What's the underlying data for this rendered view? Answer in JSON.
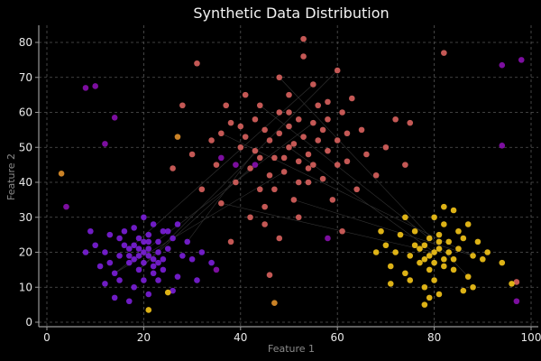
{
  "chart_data": {
    "type": "scatter",
    "title": "Synthetic Data Distribution",
    "xlabel": "Feature 1",
    "ylabel": "Feature 2",
    "xlim": [
      -2,
      102
    ],
    "ylim": [
      -1,
      85
    ],
    "xticks": [
      0,
      20,
      40,
      60,
      80,
      100
    ],
    "yticks": [
      0,
      10,
      20,
      30,
      40,
      50,
      60,
      70,
      80
    ],
    "grid": true,
    "background": "#000000",
    "series": [
      {
        "color": "#7b1fd9",
        "points": [
          [
            20,
            20
          ],
          [
            18,
            22
          ],
          [
            22,
            18
          ],
          [
            15,
            19
          ],
          [
            25,
            21
          ],
          [
            19,
            15
          ],
          [
            21,
            25
          ],
          [
            17,
            17
          ],
          [
            23,
            23
          ],
          [
            12,
            20
          ],
          [
            28,
            19
          ],
          [
            20,
            12
          ],
          [
            16,
            26
          ],
          [
            24,
            15
          ],
          [
            26,
            24
          ],
          [
            14,
            14
          ],
          [
            22,
            28
          ],
          [
            10,
            22
          ],
          [
            30,
            18
          ],
          [
            18,
            10
          ],
          [
            27,
            13
          ],
          [
            13,
            25
          ],
          [
            21,
            21
          ],
          [
            19,
            19
          ],
          [
            20,
            17
          ],
          [
            17,
            21
          ],
          [
            23,
            20
          ],
          [
            24,
            18
          ],
          [
            16,
            22
          ],
          [
            21,
            23
          ],
          [
            19,
            24
          ],
          [
            22,
            16
          ],
          [
            18,
            18
          ],
          [
            25,
            26
          ],
          [
            11,
            16
          ],
          [
            29,
            23
          ],
          [
            15,
            12
          ],
          [
            27,
            28
          ],
          [
            8,
            20
          ],
          [
            32,
            20
          ],
          [
            20,
            30
          ],
          [
            21,
            8
          ],
          [
            14,
            7
          ],
          [
            17,
            6
          ],
          [
            34,
            17
          ],
          [
            31,
            12
          ],
          [
            9,
            26
          ],
          [
            12,
            11
          ],
          [
            26,
            9
          ],
          [
            22,
            14
          ],
          [
            18,
            27
          ],
          [
            24,
            26
          ],
          [
            15,
            24
          ],
          [
            23,
            12
          ],
          [
            13,
            17
          ],
          [
            19,
            21
          ],
          [
            21,
            19
          ],
          [
            20,
            23
          ],
          [
            17,
            19
          ],
          [
            23,
            17
          ]
        ]
      },
      {
        "color": "#d9625e",
        "points": [
          [
            50,
            50
          ],
          [
            45,
            55
          ],
          [
            55,
            45
          ],
          [
            48,
            60
          ],
          [
            52,
            40
          ],
          [
            40,
            50
          ],
          [
            60,
            52
          ],
          [
            42,
            44
          ],
          [
            58,
            58
          ],
          [
            47,
            47
          ],
          [
            53,
            53
          ],
          [
            38,
            57
          ],
          [
            62,
            46
          ],
          [
            50,
            65
          ],
          [
            51,
            35
          ],
          [
            35,
            45
          ],
          [
            65,
            55
          ],
          [
            44,
            38
          ],
          [
            56,
            62
          ],
          [
            46,
            52
          ],
          [
            54,
            48
          ],
          [
            49,
            43
          ],
          [
            43,
            58
          ],
          [
            57,
            41
          ],
          [
            61,
            60
          ],
          [
            39,
            40
          ],
          [
            66,
            48
          ],
          [
            34,
            52
          ],
          [
            48,
            70
          ],
          [
            52,
            30
          ],
          [
            41,
            65
          ],
          [
            59,
            35
          ],
          [
            70,
            50
          ],
          [
            30,
            48
          ],
          [
            45,
            28
          ],
          [
            55,
            68
          ],
          [
            63,
            64
          ],
          [
            37,
            62
          ],
          [
            68,
            42
          ],
          [
            32,
            38
          ],
          [
            53,
            76
          ],
          [
            53,
            81
          ],
          [
            44,
            62
          ],
          [
            56,
            52
          ],
          [
            50,
            56
          ],
          [
            49,
            47
          ],
          [
            52,
            58
          ],
          [
            46,
            42
          ],
          [
            57,
            55
          ],
          [
            43,
            49
          ],
          [
            54,
            40
          ],
          [
            60,
            45
          ],
          [
            40,
            56
          ],
          [
            51,
            51
          ],
          [
            48,
            54
          ],
          [
            58,
            49
          ],
          [
            36,
            34
          ],
          [
            64,
            38
          ],
          [
            72,
            58
          ],
          [
            28,
            62
          ],
          [
            31,
            74
          ],
          [
            74,
            45
          ],
          [
            42,
            30
          ],
          [
            60,
            72
          ],
          [
            26,
            44
          ],
          [
            45,
            33
          ],
          [
            48,
            24
          ],
          [
            61,
            26
          ],
          [
            38,
            23
          ],
          [
            75,
            57
          ],
          [
            36,
            54
          ],
          [
            54,
            44
          ],
          [
            47,
            38
          ],
          [
            62,
            54
          ],
          [
            44,
            47
          ],
          [
            52,
            46
          ],
          [
            50,
            60
          ],
          [
            55,
            57
          ],
          [
            41,
            53
          ],
          [
            58,
            63
          ],
          [
            46,
            13.5
          ],
          [
            82,
            77
          ],
          [
            97,
            11.5
          ]
        ]
      },
      {
        "color": "#f5c518",
        "points": [
          [
            80,
            20
          ],
          [
            78,
            22
          ],
          [
            82,
            18
          ],
          [
            75,
            19
          ],
          [
            85,
            21
          ],
          [
            79,
            15
          ],
          [
            81,
            25
          ],
          [
            77,
            17
          ],
          [
            83,
            23
          ],
          [
            72,
            20
          ],
          [
            88,
            19
          ],
          [
            80,
            12
          ],
          [
            76,
            26
          ],
          [
            84,
            15
          ],
          [
            86,
            24
          ],
          [
            74,
            14
          ],
          [
            82,
            28
          ],
          [
            70,
            22
          ],
          [
            90,
            18
          ],
          [
            78,
            10
          ],
          [
            87,
            13
          ],
          [
            73,
            25
          ],
          [
            81,
            21
          ],
          [
            79,
            19
          ],
          [
            80,
            17
          ],
          [
            77,
            21
          ],
          [
            83,
            20
          ],
          [
            84,
            18
          ],
          [
            76,
            22
          ],
          [
            81,
            23
          ],
          [
            79,
            24
          ],
          [
            82,
            16
          ],
          [
            78,
            18
          ],
          [
            85,
            26
          ],
          [
            71,
            16
          ],
          [
            89,
            23
          ],
          [
            75,
            12
          ],
          [
            87,
            28
          ],
          [
            68,
            20
          ],
          [
            91,
            20
          ],
          [
            80,
            30
          ],
          [
            81,
            8
          ],
          [
            78,
            5
          ],
          [
            82,
            33
          ],
          [
            94,
            17
          ],
          [
            71,
            11
          ],
          [
            69,
            26
          ],
          [
            86,
            9
          ],
          [
            74,
            30
          ],
          [
            84,
            32
          ],
          [
            79,
            7
          ],
          [
            88,
            10
          ],
          [
            96,
            11
          ],
          [
            21,
            3.5
          ],
          [
            25,
            8.5
          ]
        ]
      },
      {
        "color": "#e0902a",
        "points": [
          [
            3,
            42.5
          ],
          [
            27,
            53
          ],
          [
            47,
            5.5
          ]
        ]
      },
      {
        "color": "#8a10b0",
        "points": [
          [
            8,
            67
          ],
          [
            10,
            67.5
          ],
          [
            14,
            58.5
          ],
          [
            12,
            51
          ],
          [
            4,
            33
          ],
          [
            98,
            75
          ],
          [
            94,
            73.5
          ],
          [
            94,
            50.5
          ],
          [
            39,
            45
          ],
          [
            43,
            45
          ],
          [
            36,
            47
          ],
          [
            58,
            24
          ],
          [
            35,
            15
          ],
          [
            97,
            6
          ]
        ]
      }
    ]
  }
}
